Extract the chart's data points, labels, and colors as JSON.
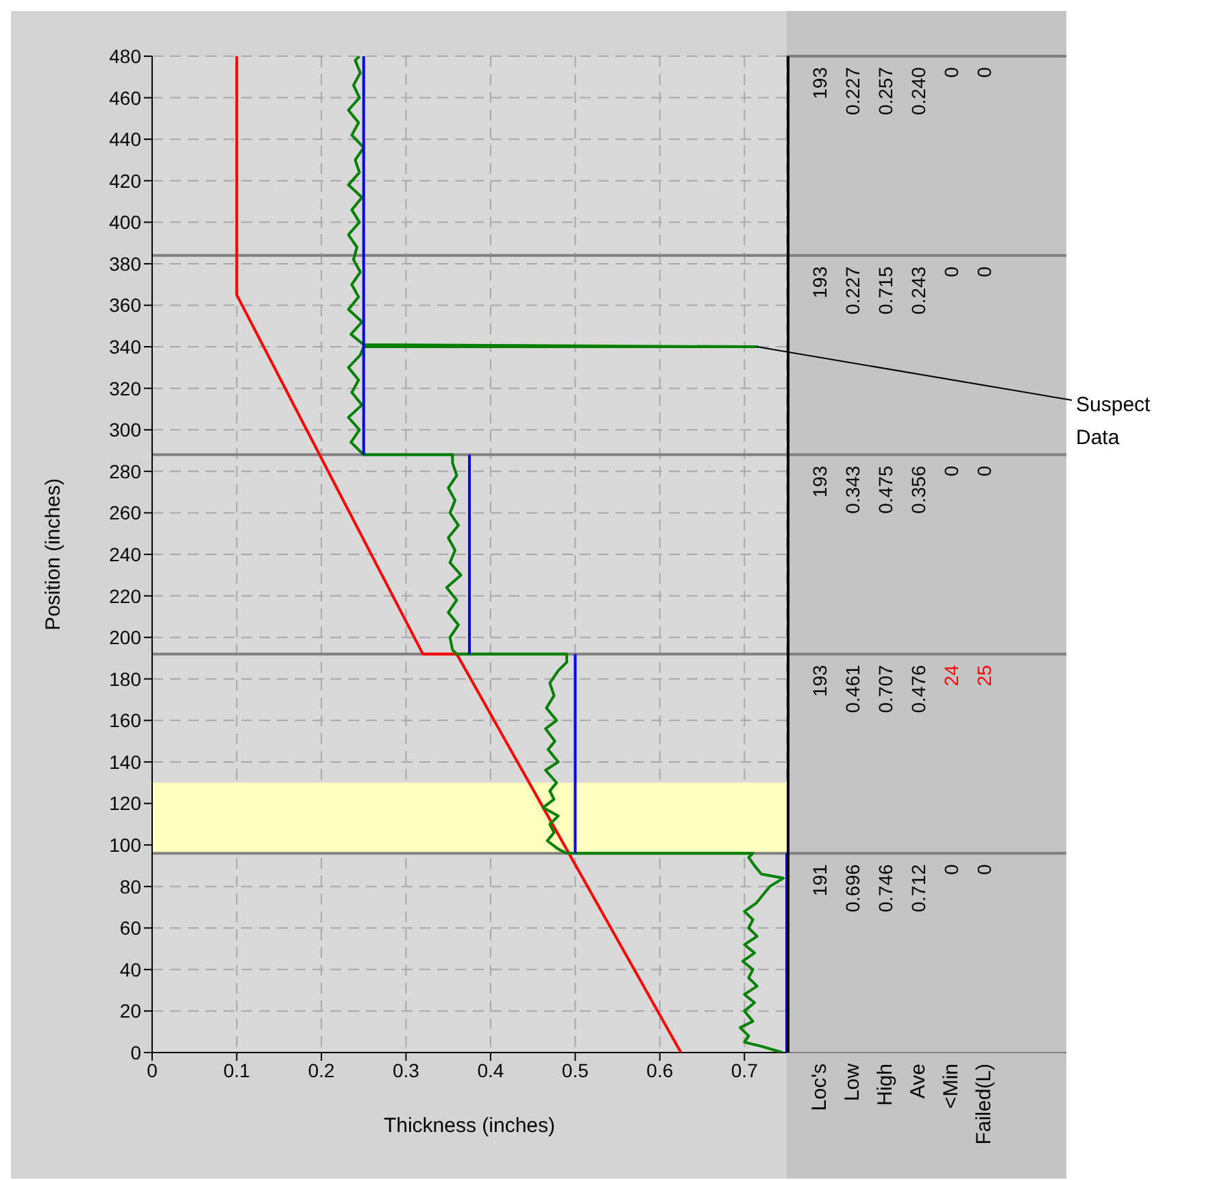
{
  "chart_data": [
    {
      "type": "line",
      "xlabel": "Thickness (inches)",
      "ylabel": "Position (inches)",
      "xlim": [
        0,
        0.75
      ],
      "xticks": [
        0,
        0.1,
        0.2,
        0.3,
        0.4,
        0.5,
        0.6,
        0.7
      ],
      "ylim": [
        0,
        480
      ],
      "yticks": [
        0,
        20,
        40,
        60,
        80,
        100,
        120,
        140,
        160,
        180,
        200,
        220,
        240,
        260,
        280,
        300,
        320,
        340,
        360,
        380,
        400,
        420,
        440,
        460,
        480
      ],
      "grid": true,
      "marker": "none",
      "line_style": "solid",
      "series": [
        {
          "color": "#ff0000",
          "x": [
            0.625,
            0.36,
            0.32,
            0.1,
            0.1
          ],
          "values": [
            0,
            192,
            192,
            365,
            480
          ]
        },
        {
          "color": "#008000",
          "x": [
            0.745,
            0.72,
            0.7,
            0.705,
            0.695,
            0.71,
            0.7,
            0.712,
            0.7,
            0.715,
            0.705,
            0.71,
            0.698,
            0.712,
            0.7,
            0.715,
            0.705,
            0.71,
            0.7,
            0.714,
            0.722,
            0.73,
            0.746,
            0.72,
            0.712,
            0.705,
            0.71,
            0.49,
            0.48,
            0.467,
            0.475,
            0.47,
            0.48,
            0.462,
            0.475,
            0.47,
            0.478,
            0.465,
            0.48,
            0.468,
            0.476,
            0.465,
            0.478,
            0.466,
            0.475,
            0.47,
            0.48,
            0.49,
            0.49,
            0.36,
            0.355,
            0.352,
            0.362,
            0.35,
            0.36,
            0.348,
            0.365,
            0.352,
            0.358,
            0.35,
            0.362,
            0.352,
            0.358,
            0.35,
            0.36,
            0.355,
            0.355,
            0.25,
            0.245,
            0.235,
            0.245,
            0.232,
            0.248,
            0.236,
            0.244,
            0.232,
            0.246,
            0.25,
            0.715,
            0.25,
            0.235,
            0.248,
            0.232,
            0.244,
            0.236,
            0.246,
            0.238,
            0.242,
            0.232,
            0.245,
            0.236,
            0.248,
            0.232,
            0.245,
            0.24,
            0.25,
            0.236,
            0.244,
            0.232,
            0.245,
            0.238,
            0.246,
            0.24,
            0.245
          ],
          "values": [
            0,
            3,
            5,
            8,
            12,
            15,
            20,
            24,
            28,
            32,
            36,
            40,
            44,
            48,
            52,
            56,
            60,
            64,
            68,
            72,
            76,
            80,
            84,
            86,
            90,
            94,
            96,
            96,
            98,
            102,
            106,
            110,
            114,
            118,
            122,
            126,
            130,
            136,
            140,
            146,
            150,
            156,
            160,
            166,
            172,
            178,
            184,
            188,
            192,
            192,
            194,
            200,
            206,
            212,
            218,
            224,
            230,
            236,
            242,
            248,
            254,
            260,
            266,
            272,
            278,
            284,
            288,
            288,
            290,
            294,
            300,
            306,
            312,
            318,
            324,
            330,
            336,
            340,
            340,
            341,
            346,
            352,
            358,
            364,
            370,
            376,
            382,
            388,
            394,
            400,
            406,
            412,
            418,
            424,
            430,
            436,
            442,
            448,
            454,
            460,
            466,
            472,
            478,
            480
          ]
        },
        {
          "color": "#0000ff",
          "x": [
            0.75,
            0.75
          ],
          "values": [
            0,
            96
          ]
        },
        {
          "color": "#0000ff",
          "x": [
            0.5,
            0.5
          ],
          "values": [
            96,
            192
          ]
        },
        {
          "color": "#0000ff",
          "x": [
            0.375,
            0.375
          ],
          "values": [
            192,
            288
          ]
        },
        {
          "color": "#0000ff",
          "x": [
            0.25,
            0.25
          ],
          "values": [
            288,
            480
          ]
        }
      ],
      "ref_lines": [
        {
          "axis": "y",
          "value": 96,
          "color": "#808080"
        },
        {
          "axis": "y",
          "value": 192,
          "color": "#808080"
        },
        {
          "axis": "y",
          "value": 288,
          "color": "#808080"
        },
        {
          "axis": "y",
          "value": 384,
          "color": "#808080"
        }
      ],
      "bands": [
        {
          "axis": "y",
          "from": 96,
          "to": 130,
          "color": "#ffffc0"
        }
      ],
      "annotations": [
        {
          "text": "Suspect Data",
          "x": 0.715,
          "y": 340
        }
      ]
    },
    {
      "type": "other",
      "categories": [
        "Loc's",
        "Low",
        "High",
        "Ave",
        "<Min",
        "Failed(L)"
      ],
      "cell_labels": [
        [
          "193",
          "0.227",
          "0.257",
          "0.240",
          "0",
          "0"
        ],
        [
          "193",
          "0.227",
          "0.715",
          "0.243",
          "0",
          "0"
        ],
        [
          "193",
          "0.343",
          "0.475",
          "0.356",
          "0",
          "0"
        ],
        [
          "193",
          "0.461",
          "0.707",
          "0.476",
          "24",
          "25"
        ],
        [
          "191",
          "0.696",
          "0.746",
          "0.712",
          "0",
          "0"
        ]
      ],
      "colors": [
        [
          "#000000",
          "#000000",
          "#000000",
          "#000000",
          "#000000",
          "#000000"
        ],
        [
          "#000000",
          "#000000",
          "#000000",
          "#000000",
          "#000000",
          "#000000"
        ],
        [
          "#000000",
          "#000000",
          "#000000",
          "#000000",
          "#000000",
          "#000000"
        ],
        [
          "#000000",
          "#000000",
          "#000000",
          "#000000",
          "#ff0000",
          "#ff0000"
        ],
        [
          "#000000",
          "#000000",
          "#000000",
          "#000000",
          "#000000",
          "#000000"
        ]
      ]
    }
  ]
}
